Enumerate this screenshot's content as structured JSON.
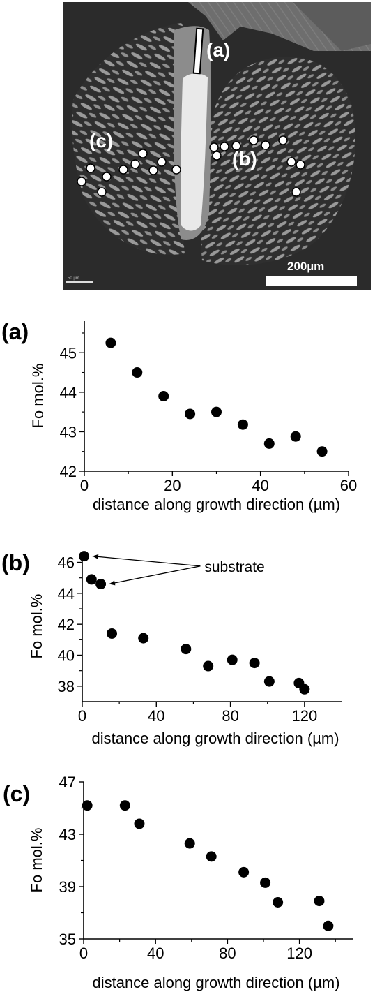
{
  "micrograph": {
    "label_a": "(a)",
    "label_b": "(b)",
    "label_c": "(c)",
    "scale_bar_label": "200µm",
    "small_scale_text": "50 µm",
    "colors": {
      "background": "#2b2b2b",
      "crystal": "#8c8c8c",
      "core": "#e9e9e9",
      "points": "#ffffff"
    }
  },
  "chart_data": [
    {
      "id": "a",
      "type": "scatter",
      "panel_label": "(a)",
      "xlabel": "distance along growth direction (µm)",
      "ylabel": "Fo mol.%",
      "xlim": [
        0,
        60
      ],
      "ylim": [
        42,
        45.8
      ],
      "xticks": [
        0,
        20,
        40,
        60
      ],
      "yticks": [
        42,
        43,
        44,
        45
      ],
      "x": [
        6,
        12,
        18,
        24,
        30,
        36,
        42,
        48,
        54
      ],
      "y": [
        45.25,
        44.5,
        43.9,
        43.45,
        43.5,
        43.18,
        42.7,
        42.88,
        42.5
      ],
      "annotations": []
    },
    {
      "id": "b",
      "type": "scatter",
      "panel_label": "(b)",
      "xlabel": "distance along growth direction (µm)",
      "ylabel": "Fo mol.%",
      "xlim": [
        0,
        140
      ],
      "ylim": [
        37,
        46.7
      ],
      "xticks": [
        0,
        40,
        80,
        120
      ],
      "yticks": [
        38,
        40,
        42,
        44,
        46
      ],
      "x": [
        1,
        5,
        10,
        16,
        33,
        56,
        68,
        81,
        93,
        101,
        117,
        120
      ],
      "y": [
        46.4,
        44.9,
        44.6,
        41.4,
        41.1,
        40.4,
        39.3,
        39.7,
        39.5,
        38.3,
        38.2,
        37.8
      ],
      "annotations": [
        {
          "text": "substrate",
          "x": 66,
          "y": 45.4,
          "arrows_to": [
            [
              1,
              46.4
            ],
            [
              10,
              44.6
            ]
          ]
        }
      ]
    },
    {
      "id": "c",
      "type": "scatter",
      "panel_label": "(c)",
      "xlabel": "distance along growth direction (µm)",
      "ylabel": "Fo mol.%",
      "xlim": [
        0,
        150
      ],
      "ylim": [
        35,
        47
      ],
      "xticks": [
        0,
        40,
        80,
        120
      ],
      "yticks": [
        35,
        39,
        43,
        47
      ],
      "x": [
        2,
        23,
        31,
        59,
        71,
        89,
        101,
        108,
        131,
        136
      ],
      "y": [
        45.2,
        45.2,
        43.8,
        42.3,
        41.3,
        40.1,
        39.3,
        37.8,
        37.9,
        36
      ],
      "annotations": []
    }
  ]
}
